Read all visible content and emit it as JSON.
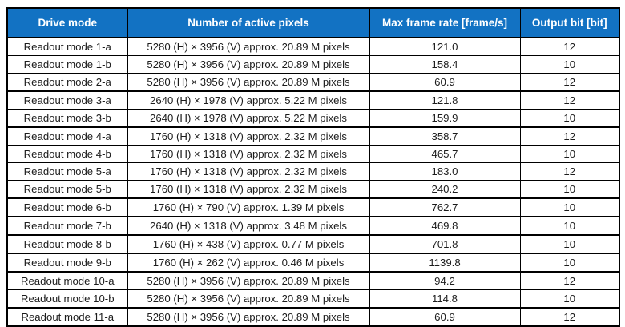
{
  "table": {
    "columns": [
      {
        "field": "mode",
        "label": "Drive mode"
      },
      {
        "field": "pixels",
        "label": "Number of active pixels"
      },
      {
        "field": "rate",
        "label": "Max frame rate [frame/s]"
      },
      {
        "field": "bits",
        "label": "Output bit [bit]"
      }
    ],
    "rows": [
      {
        "mode": "Readout mode 1-a",
        "pixels": "5280 (H) × 3956 (V) approx. 20.89 M pixels",
        "rate": "121.0",
        "bits": "12",
        "group_end": false
      },
      {
        "mode": "Readout mode 1-b",
        "pixels": "5280 (H) × 3956 (V) approx. 20.89 M pixels",
        "rate": "158.4",
        "bits": "10",
        "group_end": false
      },
      {
        "mode": "Readout mode 2-a",
        "pixels": "5280 (H) × 3956 (V) approx. 20.89 M pixels",
        "rate": "60.9",
        "bits": "12",
        "group_end": true
      },
      {
        "mode": "Readout mode 3-a",
        "pixels": "2640 (H) × 1978 (V) approx. 5.22 M pixels",
        "rate": "121.8",
        "bits": "12",
        "group_end": false
      },
      {
        "mode": "Readout mode 3-b",
        "pixels": "2640 (H) × 1978 (V) approx. 5.22 M pixels",
        "rate": "159.9",
        "bits": "10",
        "group_end": true
      },
      {
        "mode": "Readout mode 4-a",
        "pixels": "1760 (H) × 1318 (V) approx. 2.32 M pixels",
        "rate": "358.7",
        "bits": "12",
        "group_end": false
      },
      {
        "mode": "Readout mode 4-b",
        "pixels": "1760 (H) × 1318 (V) approx. 2.32 M pixels",
        "rate": "465.7",
        "bits": "10",
        "group_end": false
      },
      {
        "mode": "Readout mode 5-a",
        "pixels": "1760 (H) × 1318 (V) approx. 2.32 M pixels",
        "rate": "183.0",
        "bits": "12",
        "group_end": false
      },
      {
        "mode": "Readout mode 5-b",
        "pixels": "1760 (H) × 1318 (V) approx. 2.32 M pixels",
        "rate": "240.2",
        "bits": "10",
        "group_end": true
      },
      {
        "mode": "Readout mode 6-b",
        "pixels": "1760 (H) × 790 (V) approx. 1.39 M pixels",
        "rate": "762.7",
        "bits": "10",
        "group_end": true
      },
      {
        "mode": "Readout mode 7-b",
        "pixels": "2640 (H) × 1318 (V) approx. 3.48 M pixels",
        "rate": "469.8",
        "bits": "10",
        "group_end": true
      },
      {
        "mode": "Readout mode 8-b",
        "pixels": "1760 (H) × 438 (V) approx. 0.77 M pixels",
        "rate": "701.8",
        "bits": "10",
        "group_end": true
      },
      {
        "mode": "Readout mode 9-b",
        "pixels": "1760 (H) × 262 (V) approx. 0.46 M pixels",
        "rate": "1139.8",
        "bits": "10",
        "group_end": true
      },
      {
        "mode": "Readout mode 10-a",
        "pixels": "5280 (H) × 3956 (V) approx. 20.89 M pixels",
        "rate": "94.2",
        "bits": "12",
        "group_end": false
      },
      {
        "mode": "Readout mode 10-b",
        "pixels": "5280 (H) × 3956 (V) approx. 20.89 M pixels",
        "rate": "114.8",
        "bits": "10",
        "group_end": true
      },
      {
        "mode": "Readout mode 11-a",
        "pixels": "5280 (H) × 3956 (V) approx. 20.89 M pixels",
        "rate": "60.9",
        "bits": "12",
        "group_end": false
      }
    ]
  },
  "colors": {
    "header_bg": "#1272c3",
    "header_text": "#ffffff",
    "grid_border": "#000000",
    "cell_text": "#1c1c1c"
  }
}
